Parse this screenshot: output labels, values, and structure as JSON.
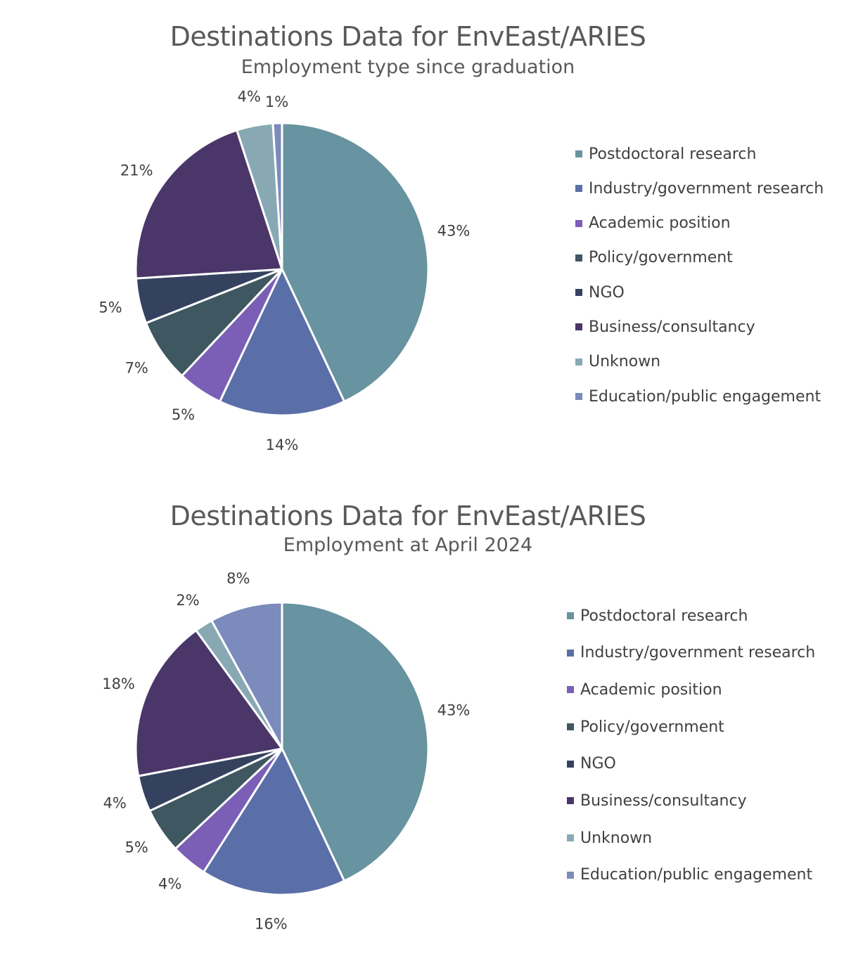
{
  "colors": {
    "postdoctoral": "#6893a0",
    "industry": "#5a6fa8",
    "academic": "#7b5fb6",
    "policy": "#3e5760",
    "ngo": "#35425f",
    "business": "#4a3669",
    "unknown": "#88a9b4",
    "education": "#7b8bbb"
  },
  "chart_data": [
    {
      "type": "pie",
      "title": "Destinations Data for EnvEast/ARIES",
      "subtitle": "Employment type since graduation",
      "legend_position": "right",
      "categories": [
        "Postdoctoral research",
        "Industry/government research",
        "Academic position",
        "Policy/government",
        "NGO",
        "Business/consultancy",
        "Unknown",
        "Education/public engagement"
      ],
      "values": [
        43,
        14,
        5,
        7,
        5,
        21,
        4,
        1
      ],
      "data_labels": [
        "43%",
        "14%",
        "5%",
        "7%",
        "5%",
        "21%",
        "4%",
        "1%"
      ]
    },
    {
      "type": "pie",
      "title": "Destinations Data for EnvEast/ARIES",
      "subtitle": "Employment at April 2024",
      "legend_position": "right",
      "categories": [
        "Postdoctoral research",
        "Industry/government research",
        "Academic position",
        "Policy/government",
        "NGO",
        "Business/consultancy",
        "Unknown",
        "Education/public engagement"
      ],
      "values": [
        43,
        16,
        4,
        5,
        4,
        18,
        2,
        8
      ],
      "data_labels": [
        "43%",
        "16%",
        "4%",
        "5%",
        "4%",
        "18%",
        "2%",
        "8%"
      ]
    }
  ]
}
